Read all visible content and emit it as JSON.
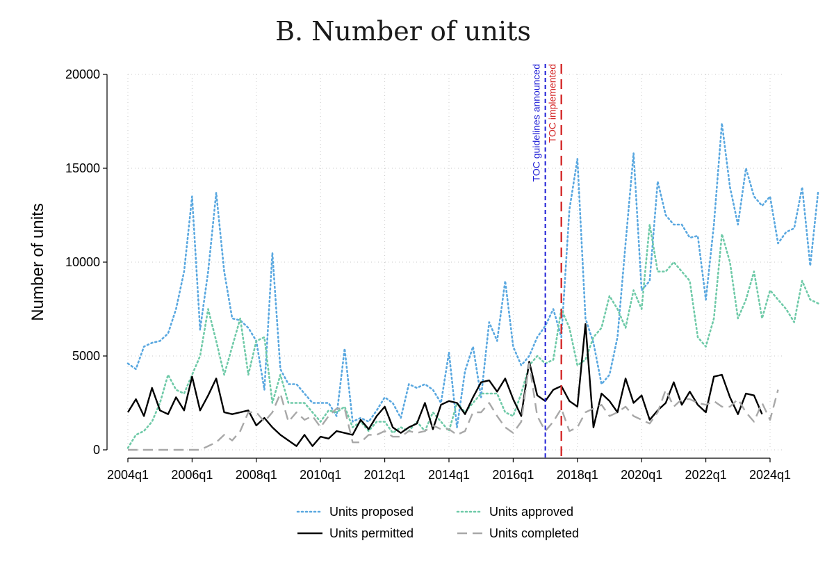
{
  "chart_data": {
    "type": "line",
    "title": "B. Number of units",
    "ylabel": "Number of units",
    "xlabel": "",
    "ylim": [
      0,
      20000
    ],
    "y_ticks": [
      "0",
      "5000",
      "10000",
      "15000",
      "20000"
    ],
    "x_tick_labels": [
      "2004q1",
      "2006q1",
      "2008q1",
      "2010q1",
      "2012q1",
      "2014q1",
      "2016q1",
      "2018q1",
      "2020q1",
      "2022q1",
      "2024q1"
    ],
    "grid": true,
    "legend_position": "bottom",
    "x_start": "2004q1",
    "x_end": "2024q1",
    "annotations": [
      {
        "label": "TOC guidelines announced",
        "x": "2017q1",
        "color": "#1f1fd6",
        "style": "short-dash"
      },
      {
        "label": "TOC implemented",
        "x": "2017q3",
        "color": "#d42a2a",
        "style": "long-dash"
      }
    ],
    "series": [
      {
        "name": "Units proposed",
        "color": "#5aa8e0",
        "style": "dotted",
        "values": [
          4600,
          4300,
          5500,
          5700,
          5800,
          6200,
          7500,
          9500,
          13500,
          6400,
          9500,
          13700,
          9500,
          7000,
          6900,
          6500,
          5800,
          3200,
          10500,
          4300,
          3500,
          3500,
          3000,
          2500,
          2500,
          2500,
          1800,
          5400,
          1500,
          1700,
          1500,
          2100,
          2800,
          2500,
          1700,
          3500,
          3300,
          3500,
          3200,
          2500,
          5200,
          1200,
          4200,
          5500,
          2800,
          6800,
          5800,
          9000,
          5500,
          4500,
          5000,
          6000,
          6600,
          7500,
          6000,
          12800,
          15500,
          7000,
          5700,
          3500,
          4000,
          6000,
          11000,
          15800,
          8500,
          9000,
          14300,
          12500,
          12000,
          12000,
          11300,
          11400,
          8000,
          12000,
          17400,
          14000,
          12000,
          15000,
          13500,
          13000,
          13500,
          11000,
          11600,
          11800,
          14000,
          9800,
          13800
        ]
      },
      {
        "name": "Units approved",
        "color": "#6fcaa8",
        "style": "dotted",
        "values": [
          100,
          800,
          1000,
          1500,
          2500,
          4000,
          3200,
          3000,
          4000,
          5000,
          7500,
          5800,
          4000,
          5500,
          7000,
          4000,
          5800,
          6000,
          2500,
          4000,
          2500,
          2500,
          2500,
          2000,
          1500,
          2100,
          2000,
          2300,
          1200,
          1500,
          1000,
          1500,
          1500,
          900,
          1200,
          1000,
          1500,
          1000,
          2000,
          1500,
          1000,
          2500,
          2000,
          2500,
          3000,
          3000,
          3000,
          2000,
          1800,
          3000,
          4500,
          5000,
          4600,
          4800,
          7500,
          6500,
          4500,
          4800,
          6000,
          6500,
          8200,
          7500,
          6500,
          8500,
          7500,
          12000,
          9500,
          9500,
          10000,
          9500,
          9000,
          6000,
          5500,
          7000,
          11500,
          10000,
          7000,
          8000,
          9500,
          7000,
          8500,
          8000,
          7500,
          6800,
          9000,
          8000,
          7800
        ]
      },
      {
        "name": "Units permitted",
        "color": "#000000",
        "style": "solid",
        "values": [
          2000,
          2700,
          1800,
          3300,
          2100,
          1900,
          2800,
          2100,
          3900,
          2100,
          2900,
          3800,
          2000,
          1900,
          2000,
          2100,
          1300,
          1700,
          1200,
          800,
          500,
          200,
          800,
          200,
          700,
          600,
          1000,
          900,
          800,
          1600,
          1100,
          1800,
          2300,
          1200,
          900,
          1200,
          1400,
          2500,
          1100,
          2400,
          2600,
          2500,
          1900,
          2800,
          3600,
          3700,
          3100,
          3800,
          2700,
          1800,
          4700,
          2900,
          2600,
          3200,
          3400,
          2600,
          2300,
          6700,
          1200,
          3000,
          2600,
          2000,
          3800,
          2500,
          2900,
          1600,
          2100,
          2500,
          3600,
          2400,
          3100,
          2400,
          2000,
          3900,
          4000,
          2800,
          1900,
          3000,
          2900,
          1900
        ]
      },
      {
        "name": "Units completed",
        "color": "#a8a8a8",
        "style": "long-dash",
        "values": [
          0,
          0,
          0,
          0,
          0,
          0,
          0,
          0,
          0,
          0,
          200,
          400,
          800,
          500,
          1000,
          2000,
          2000,
          1500,
          2000,
          3000,
          1500,
          2000,
          1600,
          1800,
          1200,
          1800,
          2200,
          2200,
          400,
          400,
          800,
          800,
          1000,
          700,
          700,
          1000,
          900,
          1000,
          1300,
          1100,
          1100,
          800,
          1000,
          2000,
          2000,
          2500,
          1800,
          1200,
          900,
          1500,
          4600,
          1800,
          1000,
          1500,
          2200,
          1000,
          1200,
          2000,
          2200,
          2400,
          1800,
          2000,
          2300,
          1800,
          1600,
          1400,
          2000,
          3200,
          2300,
          2700,
          2700,
          2500,
          2400,
          2600,
          2300,
          2300,
          2700,
          2000,
          1500,
          2500,
          1600,
          3200
        ]
      }
    ]
  }
}
